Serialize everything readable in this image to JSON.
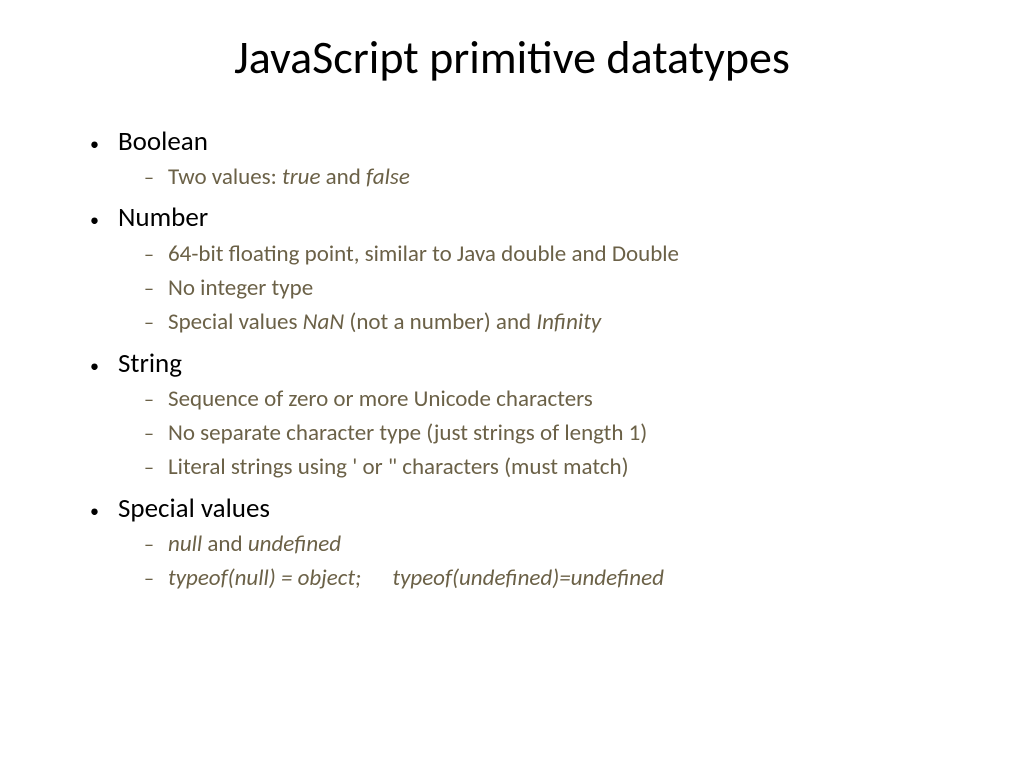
{
  "title": "JavaScript primitive datatypes",
  "colors": {
    "background": "#ffffff",
    "title_color": "#000000",
    "l1_color": "#000000",
    "l2_color": "#6b6147"
  },
  "typography": {
    "title_size": 46,
    "l1_size": 27,
    "l2_size": 23,
    "font_family": "Calibri"
  },
  "bullets": {
    "l1_marker": "•",
    "l2_marker": "–"
  },
  "items": [
    {
      "label": "Boolean",
      "sub": [
        {
          "pre": "Two values: ",
          "i1": "true",
          "mid": " and ",
          "i2": "false",
          "post": ""
        }
      ]
    },
    {
      "label": "Number",
      "sub": [
        {
          "pre": "64-bit floating point, similar to Java double and Double",
          "i1": "",
          "mid": "",
          "i2": "",
          "post": ""
        },
        {
          "pre": "No integer type",
          "i1": "",
          "mid": "",
          "i2": "",
          "post": ""
        },
        {
          "pre": "Special values ",
          "i1": "NaN",
          "mid": "  (not a number) and ",
          "i2": "Infinity",
          "post": ""
        }
      ]
    },
    {
      "label": "String",
      "sub": [
        {
          "pre": "Sequence of zero or more Unicode characters",
          "i1": "",
          "mid": "",
          "i2": "",
          "post": ""
        },
        {
          "pre": "No separate character type (just strings of length 1)",
          "i1": "",
          "mid": "",
          "i2": "",
          "post": ""
        },
        {
          "pre": "Literal strings using ' or \" characters  (must match)",
          "i1": "",
          "mid": "",
          "i2": "",
          "post": ""
        }
      ]
    },
    {
      "label": "Special values",
      "sub": [
        {
          "pre": "",
          "i1": "null",
          "mid": "  and ",
          "i2": "undefined",
          "post": ""
        },
        {
          "pre": "",
          "i1": "typeof(null) = object;      typeof(undefined)=undefined",
          "mid": "",
          "i2": "",
          "post": ""
        }
      ]
    }
  ]
}
